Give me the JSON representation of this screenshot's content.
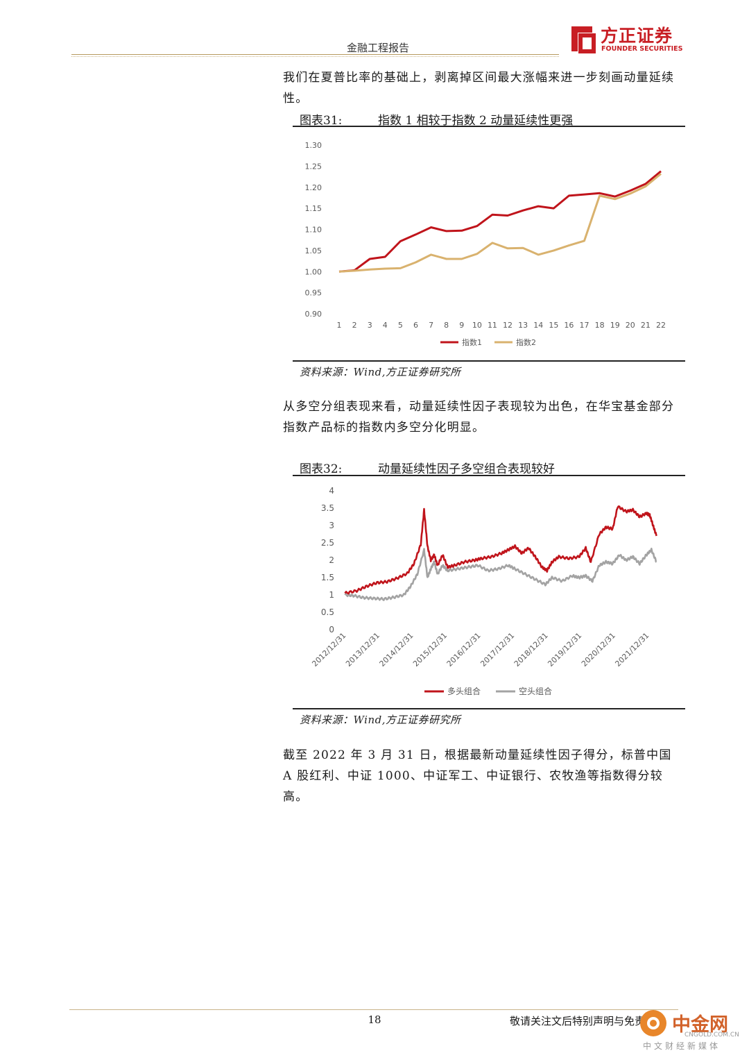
{
  "header": {
    "title": "金融工程报告"
  },
  "logo": {
    "cn": "方正证券",
    "en": "FOUNDER SECURITIES"
  },
  "paragraphs": {
    "p1": "我们在夏普比率的基础上，剥离掉区间最大涨幅来进一步刻画动量延续性。",
    "p2": "从多空分组表现来看，动量延续性因子表现较为出色，在华宝基金部分指数产品标的指数内多空分化明显。",
    "p3": "截至 2022 年 3 月 31 日，根据最新动量延续性因子得分，标普中国 A 股红利、中证 1000、中证军工、中证银行、农牧渔等指数得分较高。"
  },
  "figure31": {
    "label": "图表31:",
    "title": "指数 1 相较于指数 2 动量延续性更强",
    "source": "资料来源：Wind,方正证券研究所"
  },
  "figure32": {
    "label": "图表32:",
    "title": "动量延续性因子多空组合表现较好",
    "source": "资料来源：Wind,方正证券研究所"
  },
  "footer": {
    "page": "18",
    "note": "敬请关注文后特别声明与免责条款"
  },
  "watermark": {
    "name": "中金网",
    "url": "CNGOLD.COM.CN",
    "tag": "中文财经新媒体"
  },
  "chart_data": [
    {
      "type": "line",
      "x": [
        1,
        2,
        3,
        4,
        5,
        6,
        7,
        8,
        9,
        10,
        11,
        12,
        13,
        14,
        15,
        16,
        17,
        18,
        19,
        20,
        21,
        22
      ],
      "series": [
        {
          "name": "指数1",
          "color": "#c0141b",
          "values": [
            1.0,
            1.003,
            1.03,
            1.035,
            1.072,
            1.088,
            1.105,
            1.096,
            1.097,
            1.108,
            1.135,
            1.133,
            1.145,
            1.155,
            1.15,
            1.18,
            1.183,
            1.186,
            1.178,
            1.192,
            1.208,
            1.238
          ]
        },
        {
          "name": "指数2",
          "color": "#d9b26e",
          "values": [
            1.0,
            1.002,
            1.005,
            1.007,
            1.008,
            1.022,
            1.04,
            1.03,
            1.03,
            1.042,
            1.068,
            1.055,
            1.056,
            1.04,
            1.05,
            1.062,
            1.073,
            1.18,
            1.172,
            1.185,
            1.202,
            1.232
          ]
        }
      ],
      "ylim": [
        0.9,
        1.3
      ],
      "yticks": [
        "1.30",
        "1.25",
        "1.20",
        "1.15",
        "1.10",
        "1.05",
        "1.00",
        "0.95",
        "0.90"
      ],
      "legend": "bottom"
    },
    {
      "type": "line",
      "categories": [
        "2012/12/31",
        "2013/12/31",
        "2014/12/31",
        "2015/12/31",
        "2016/12/31",
        "2017/12/31",
        "2018/12/31",
        "2019/12/31",
        "2020/12/31",
        "2021/12/31"
      ],
      "ylim": [
        0,
        4
      ],
      "yticks": [
        "4",
        "3.5",
        "3",
        "2.5",
        "2",
        "1.5",
        "1",
        "0.5",
        "0"
      ],
      "series": [
        {
          "name": "多头组合",
          "color": "#c0141b",
          "points": [
            [
              2012.95,
              1.05
            ],
            [
              2013.3,
              1.12
            ],
            [
              2013.6,
              1.25
            ],
            [
              2013.9,
              1.35
            ],
            [
              2014.2,
              1.38
            ],
            [
              2014.5,
              1.48
            ],
            [
              2014.8,
              1.62
            ],
            [
              2015.0,
              1.9
            ],
            [
              2015.2,
              2.45
            ],
            [
              2015.3,
              3.45
            ],
            [
              2015.4,
              2.4
            ],
            [
              2015.5,
              2.0
            ],
            [
              2015.6,
              2.15
            ],
            [
              2015.7,
              1.85
            ],
            [
              2015.85,
              2.15
            ],
            [
              2016.0,
              1.8
            ],
            [
              2016.2,
              1.85
            ],
            [
              2016.5,
              1.95
            ],
            [
              2016.8,
              2.0
            ],
            [
              2017.0,
              2.05
            ],
            [
              2017.3,
              2.1
            ],
            [
              2017.6,
              2.2
            ],
            [
              2017.8,
              2.3
            ],
            [
              2018.0,
              2.4
            ],
            [
              2018.2,
              2.2
            ],
            [
              2018.4,
              2.35
            ],
            [
              2018.6,
              2.1
            ],
            [
              2018.8,
              1.8
            ],
            [
              2018.95,
              1.7
            ],
            [
              2019.1,
              1.95
            ],
            [
              2019.3,
              2.1
            ],
            [
              2019.6,
              2.05
            ],
            [
              2019.9,
              2.1
            ],
            [
              2020.1,
              2.35
            ],
            [
              2020.25,
              1.95
            ],
            [
              2020.5,
              2.75
            ],
            [
              2020.7,
              2.95
            ],
            [
              2020.9,
              2.9
            ],
            [
              2021.05,
              3.55
            ],
            [
              2021.3,
              3.4
            ],
            [
              2021.5,
              3.45
            ],
            [
              2021.7,
              3.25
            ],
            [
              2021.9,
              3.35
            ],
            [
              2022.0,
              3.3
            ],
            [
              2022.1,
              3.0
            ],
            [
              2022.2,
              2.7
            ]
          ]
        },
        {
          "name": "空头组合",
          "color": "#a3a3a3",
          "points": [
            [
              2012.95,
              1.0
            ],
            [
              2013.2,
              0.98
            ],
            [
              2013.5,
              0.92
            ],
            [
              2013.8,
              0.9
            ],
            [
              2014.1,
              0.88
            ],
            [
              2014.4,
              0.93
            ],
            [
              2014.7,
              1.0
            ],
            [
              2014.9,
              1.25
            ],
            [
              2015.1,
              1.6
            ],
            [
              2015.3,
              2.3
            ],
            [
              2015.4,
              1.5
            ],
            [
              2015.5,
              1.75
            ],
            [
              2015.6,
              1.95
            ],
            [
              2015.7,
              1.6
            ],
            [
              2015.85,
              1.85
            ],
            [
              2016.0,
              1.7
            ],
            [
              2016.3,
              1.75
            ],
            [
              2016.6,
              1.8
            ],
            [
              2016.9,
              1.85
            ],
            [
              2017.2,
              1.7
            ],
            [
              2017.5,
              1.75
            ],
            [
              2017.8,
              1.85
            ],
            [
              2018.0,
              1.75
            ],
            [
              2018.3,
              1.6
            ],
            [
              2018.6,
              1.45
            ],
            [
              2018.9,
              1.3
            ],
            [
              2019.1,
              1.5
            ],
            [
              2019.4,
              1.4
            ],
            [
              2019.7,
              1.55
            ],
            [
              2019.9,
              1.5
            ],
            [
              2020.1,
              1.55
            ],
            [
              2020.3,
              1.4
            ],
            [
              2020.5,
              1.85
            ],
            [
              2020.7,
              1.95
            ],
            [
              2020.9,
              1.9
            ],
            [
              2021.1,
              2.15
            ],
            [
              2021.3,
              2.0
            ],
            [
              2021.5,
              2.1
            ],
            [
              2021.7,
              1.9
            ],
            [
              2021.9,
              2.15
            ],
            [
              2022.05,
              2.3
            ],
            [
              2022.2,
              1.95
            ]
          ]
        }
      ],
      "legend": "bottom"
    }
  ]
}
